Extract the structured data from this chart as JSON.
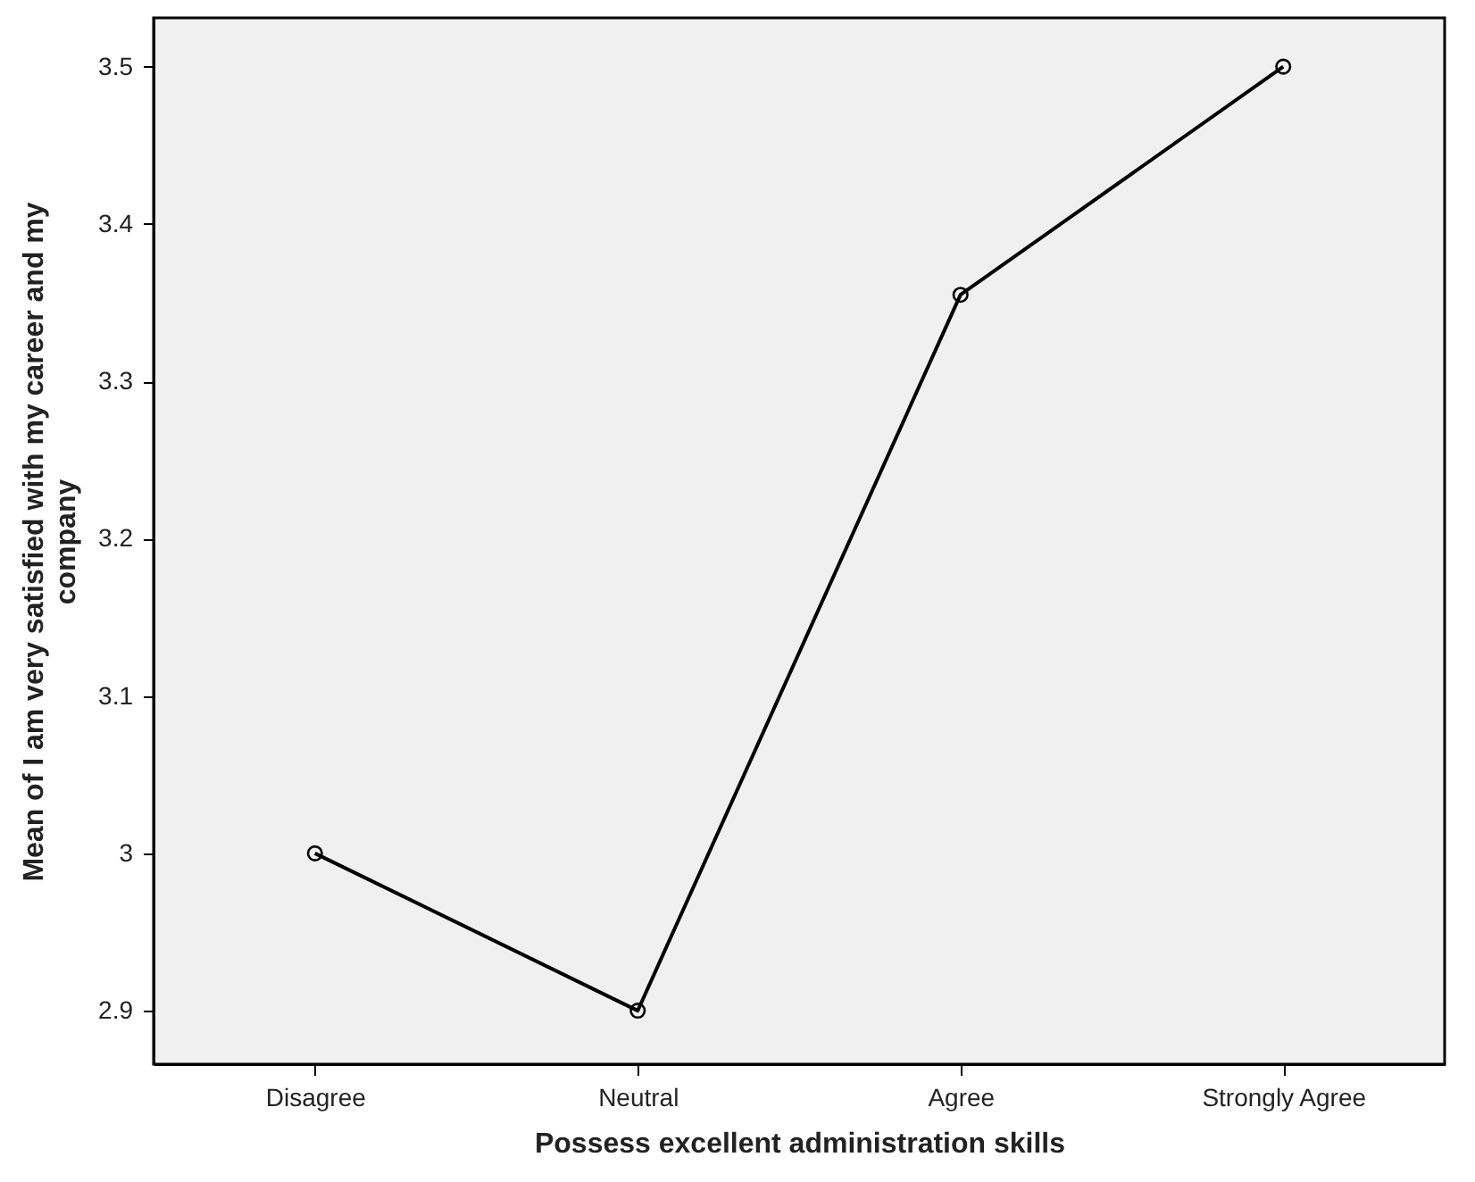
{
  "chart_data": {
    "type": "line",
    "xlabel": "Possess excellent administration skills",
    "ylabel": "Mean of I am very satisfied with my career and my company",
    "categories": [
      "Disagree",
      "Neutral",
      "Agree",
      "Strongly Agree"
    ],
    "series": [
      {
        "color": "#000000",
        "values": [
          3.0,
          2.9,
          3.355,
          3.5
        ]
      }
    ],
    "ylim": [
      2.866,
      3.531
    ],
    "yticks": [
      {
        "value": 2.9,
        "label": "2.9"
      },
      {
        "value": 3.0,
        "label": "3"
      },
      {
        "value": 3.1,
        "label": "3.1"
      },
      {
        "value": 3.2,
        "label": "3.2"
      },
      {
        "value": 3.3,
        "label": "3.3"
      },
      {
        "value": 3.4,
        "label": "3.4"
      },
      {
        "value": 3.5,
        "label": "3.5"
      }
    ],
    "grid": false,
    "marker": "circle",
    "line_style": "solid"
  }
}
